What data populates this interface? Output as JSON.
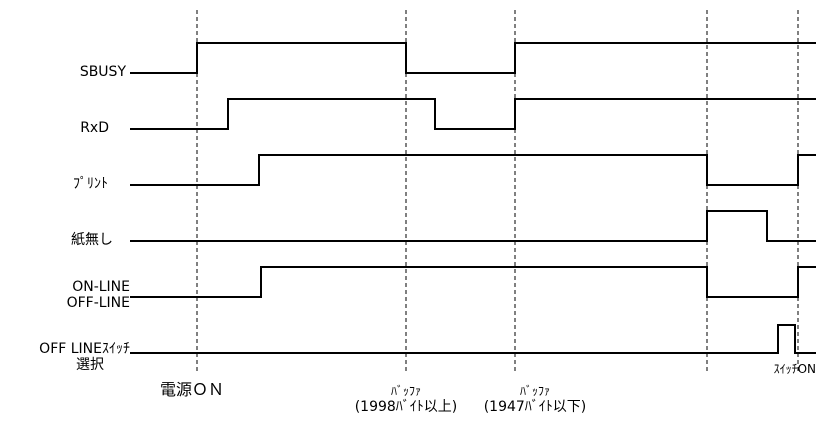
{
  "signals": [
    {
      "id": "sbusy",
      "lines": [
        "SBUSY"
      ]
    },
    {
      "id": "rxd",
      "lines": [
        "RxD"
      ]
    },
    {
      "id": "print",
      "lines": [
        "ﾌﾟﾘﾝﾄ"
      ]
    },
    {
      "id": "paper",
      "lines": [
        "紙無し"
      ]
    },
    {
      "id": "online",
      "lines": [
        "ON-LINE",
        "OFF-LINE"
      ]
    },
    {
      "id": "offsw",
      "lines": [
        "OFF LINEｽｲｯﾁ",
        "選択"
      ]
    }
  ],
  "events": {
    "power_on": "電源ＯＮ",
    "buffer_full_title": "ﾊﾞｯﾌｧ",
    "buffer_full_note": "(1998ﾊﾞｲﾄ以上)",
    "buffer_low_title": "ﾊﾞｯﾌｧ",
    "buffer_low_note": "(1947ﾊﾞｲﾄ以下)",
    "switch_on": "ｽｲｯﾁON"
  }
}
